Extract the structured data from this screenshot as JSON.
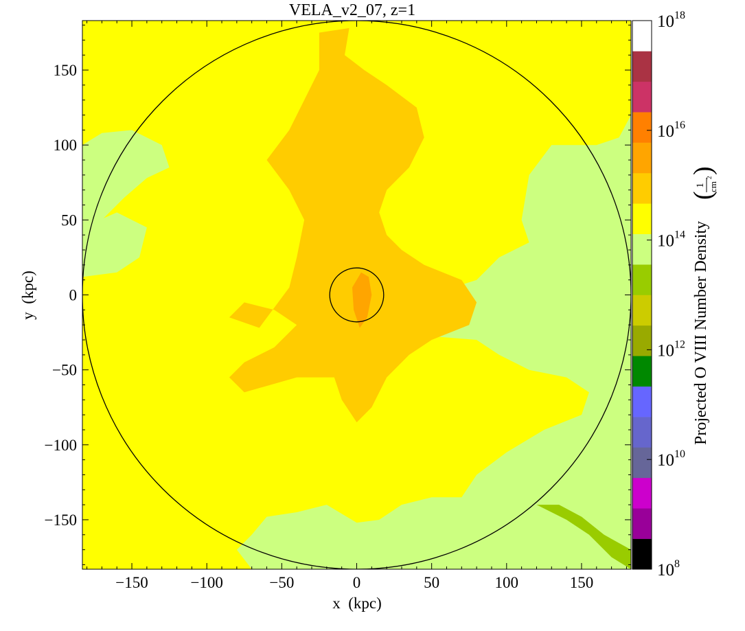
{
  "chart_data": {
    "type": "heatmap",
    "title": "VELA_v2_07, z=1",
    "xlabel": "x  (kpc)",
    "ylabel": "y  (kpc)",
    "xlim": [
      -183,
      183
    ],
    "ylim": [
      -183,
      183
    ],
    "x_ticks": [
      -150,
      -100,
      -50,
      0,
      50,
      100,
      150
    ],
    "y_ticks": [
      -150,
      -100,
      -50,
      0,
      50,
      100,
      150
    ],
    "x_tick_labels": [
      "−150",
      "−100",
      "−50",
      "0",
      "50",
      "100",
      "150"
    ],
    "y_tick_labels": [
      "−150",
      "−100",
      "−50",
      "0",
      "50",
      "100",
      "150"
    ],
    "background_level_color": "#ffff00",
    "circles": [
      {
        "center": [
          0,
          0
        ],
        "radius": 183
      },
      {
        "center": [
          0,
          0
        ],
        "radius": 18
      }
    ],
    "regions": [
      {
        "level": "1e14-3e14",
        "color": "#ccff80",
        "location": "upper-left edge",
        "polygon": [
          [
            -183,
            100
          ],
          [
            -170,
            108
          ],
          [
            -150,
            110
          ],
          [
            -130,
            100
          ],
          [
            -125,
            85
          ],
          [
            -140,
            78
          ],
          [
            -155,
            65
          ],
          [
            -170,
            50
          ],
          [
            -183,
            40
          ]
        ]
      },
      {
        "level": "1e14-3e14",
        "color": "#ccff80",
        "location": "left edge",
        "polygon": [
          [
            -183,
            45
          ],
          [
            -160,
            55
          ],
          [
            -140,
            45
          ],
          [
            -145,
            25
          ],
          [
            -160,
            15
          ],
          [
            -183,
            12
          ]
        ]
      },
      {
        "level": "1e14-3e14",
        "color": "#ccff80",
        "location": "right half and bottom",
        "polygon": [
          [
            183,
            120
          ],
          [
            175,
            105
          ],
          [
            160,
            100
          ],
          [
            130,
            100
          ],
          [
            115,
            80
          ],
          [
            110,
            50
          ],
          [
            115,
            35
          ],
          [
            95,
            25
          ],
          [
            80,
            10
          ],
          [
            55,
            2
          ],
          [
            40,
            -15
          ],
          [
            55,
            -28
          ],
          [
            80,
            -30
          ],
          [
            95,
            -40
          ],
          [
            115,
            -50
          ],
          [
            140,
            -55
          ],
          [
            155,
            -65
          ],
          [
            150,
            -80
          ],
          [
            125,
            -90
          ],
          [
            100,
            -105
          ],
          [
            80,
            -120
          ],
          [
            70,
            -135
          ],
          [
            50,
            -135
          ],
          [
            30,
            -140
          ],
          [
            15,
            -150
          ],
          [
            0,
            -152
          ],
          [
            -20,
            -140
          ],
          [
            -40,
            -145
          ],
          [
            -60,
            -148
          ],
          [
            -70,
            -160
          ],
          [
            -80,
            -170
          ],
          [
            -70,
            -183
          ],
          [
            183,
            -183
          ]
        ]
      },
      {
        "level": "1e13-3e13",
        "color": "#99cc00",
        "location": "lower-right corner",
        "polygon": [
          [
            120,
            -140
          ],
          [
            140,
            -150
          ],
          [
            155,
            -160
          ],
          [
            170,
            -175
          ],
          [
            183,
            -183
          ],
          [
            183,
            -170
          ],
          [
            165,
            -160
          ],
          [
            150,
            -148
          ],
          [
            135,
            -140
          ]
        ]
      },
      {
        "level": "3e14-1e15",
        "color": "#ffcc00",
        "location": "central filament",
        "polygon": [
          [
            -25,
            175
          ],
          [
            -5,
            178
          ],
          [
            -8,
            160
          ],
          [
            5,
            150
          ],
          [
            20,
            140
          ],
          [
            40,
            125
          ],
          [
            45,
            105
          ],
          [
            35,
            85
          ],
          [
            20,
            70
          ],
          [
            15,
            55
          ],
          [
            20,
            40
          ],
          [
            30,
            30
          ],
          [
            45,
            20
          ],
          [
            70,
            10
          ],
          [
            80,
            -5
          ],
          [
            75,
            -20
          ],
          [
            50,
            -30
          ],
          [
            35,
            -40
          ],
          [
            20,
            -55
          ],
          [
            10,
            -75
          ],
          [
            0,
            -85
          ],
          [
            -10,
            -70
          ],
          [
            -15,
            -55
          ],
          [
            -40,
            -55
          ],
          [
            -75,
            -65
          ],
          [
            -85,
            -55
          ],
          [
            -75,
            -45
          ],
          [
            -55,
            -35
          ],
          [
            -40,
            -20
          ],
          [
            -55,
            -10
          ],
          [
            -75,
            -5
          ],
          [
            -85,
            -15
          ],
          [
            -65,
            -22
          ],
          [
            -45,
            5
          ],
          [
            -40,
            25
          ],
          [
            -35,
            50
          ],
          [
            -45,
            70
          ],
          [
            -60,
            90
          ],
          [
            -45,
            110
          ],
          [
            -35,
            130
          ],
          [
            -25,
            150
          ]
        ]
      },
      {
        "level": "3e15-1e16",
        "color": "#ffa500",
        "location": "galaxy center",
        "polygon": [
          [
            3,
            15
          ],
          [
            8,
            12
          ],
          [
            10,
            0
          ],
          [
            7,
            -15
          ],
          [
            2,
            -22
          ],
          [
            -2,
            -10
          ],
          [
            -3,
            5
          ]
        ]
      }
    ],
    "colorbar": {
      "label": "Projected O VIII Number Density",
      "units_numerator": "1",
      "units_denominator": "cm",
      "units_exponent": "2",
      "scale": "log",
      "range": [
        "1e8",
        "1e18"
      ],
      "tick_values": [
        "1e8",
        "1e10",
        "1e12",
        "1e14",
        "1e16",
        "1e18"
      ],
      "tick_bases": [
        "10",
        "10",
        "10",
        "10",
        "10",
        "10"
      ],
      "tick_exponents": [
        "8",
        "10",
        "12",
        "14",
        "16",
        "18"
      ],
      "colors_bottom_to_top": [
        "#000000",
        "#990099",
        "#cc00cc",
        "#666699",
        "#6666cc",
        "#6666ff",
        "#008800",
        "#99aa00",
        "#cccc00",
        "#99cc00",
        "#ccff80",
        "#ffff00",
        "#ffcc00",
        "#ffa500",
        "#ff8000",
        "#cc3366",
        "#aa3344",
        "#ffffff"
      ]
    }
  }
}
